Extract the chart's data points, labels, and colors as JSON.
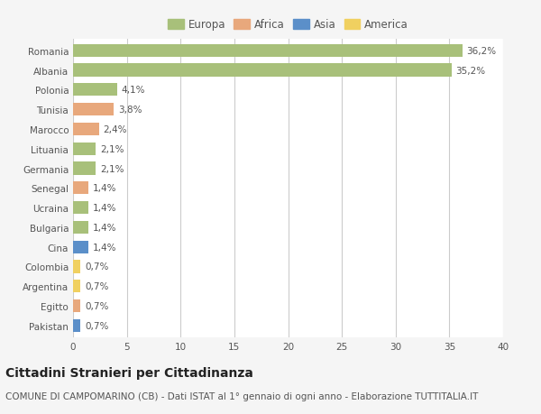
{
  "countries": [
    "Romania",
    "Albania",
    "Polonia",
    "Tunisia",
    "Marocco",
    "Lituania",
    "Germania",
    "Senegal",
    "Ucraina",
    "Bulgaria",
    "Cina",
    "Colombia",
    "Argentina",
    "Egitto",
    "Pakistan"
  ],
  "values": [
    36.2,
    35.2,
    4.1,
    3.8,
    2.4,
    2.1,
    2.1,
    1.4,
    1.4,
    1.4,
    1.4,
    0.7,
    0.7,
    0.7,
    0.7
  ],
  "labels": [
    "36,2%",
    "35,2%",
    "4,1%",
    "3,8%",
    "2,4%",
    "2,1%",
    "2,1%",
    "1,4%",
    "1,4%",
    "1,4%",
    "1,4%",
    "0,7%",
    "0,7%",
    "0,7%",
    "0,7%"
  ],
  "continents": [
    "Europa",
    "Europa",
    "Europa",
    "Africa",
    "Africa",
    "Europa",
    "Europa",
    "Africa",
    "Europa",
    "Europa",
    "Asia",
    "America",
    "America",
    "Africa",
    "Asia"
  ],
  "colors": {
    "Europa": "#a8c07a",
    "Africa": "#e8a87c",
    "Asia": "#5b8fc9",
    "America": "#f0d060"
  },
  "legend_order": [
    "Europa",
    "Africa",
    "Asia",
    "America"
  ],
  "background_color": "#f5f5f5",
  "plot_bg_color": "#ffffff",
  "grid_color": "#cccccc",
  "title": "Cittadini Stranieri per Cittadinanza",
  "subtitle": "COMUNE DI CAMPOMARINO (CB) - Dati ISTAT al 1° gennaio di ogni anno - Elaborazione TUTTITALIA.IT",
  "xlim": [
    0,
    40
  ],
  "xticks": [
    0,
    5,
    10,
    15,
    20,
    25,
    30,
    35,
    40
  ],
  "title_fontsize": 10,
  "subtitle_fontsize": 7.5,
  "label_fontsize": 7.5,
  "tick_fontsize": 7.5,
  "legend_fontsize": 8.5
}
